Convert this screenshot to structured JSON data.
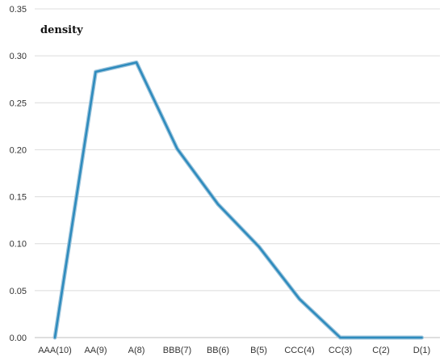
{
  "chart_data": {
    "type": "line",
    "title": "",
    "xlabel": "",
    "ylabel": "density",
    "categories": [
      "AAA(10)",
      "AA(9)",
      "A(8)",
      "BBB(7)",
      "BB(6)",
      "B(5)",
      "CCC(4)",
      "CC(3)",
      "C(2)",
      "D(1)"
    ],
    "series": [
      {
        "name": "",
        "values": [
          0.0,
          0.283,
          0.293,
          0.201,
          0.142,
          0.097,
          0.041,
          0.0,
          0.0,
          0.0
        ]
      }
    ],
    "ylim": [
      0,
      0.35
    ],
    "yticks": [
      "0.00",
      "0.05",
      "0.10",
      "0.15",
      "0.20",
      "0.25",
      "0.30",
      "0.35"
    ],
    "grid": "horizontal",
    "legend": "none",
    "colors": {
      "line": "#2e8bbd",
      "line_shadow": "#9cc4dc",
      "grid": "#dcdcdc",
      "axis": "#bdbdbd"
    }
  }
}
